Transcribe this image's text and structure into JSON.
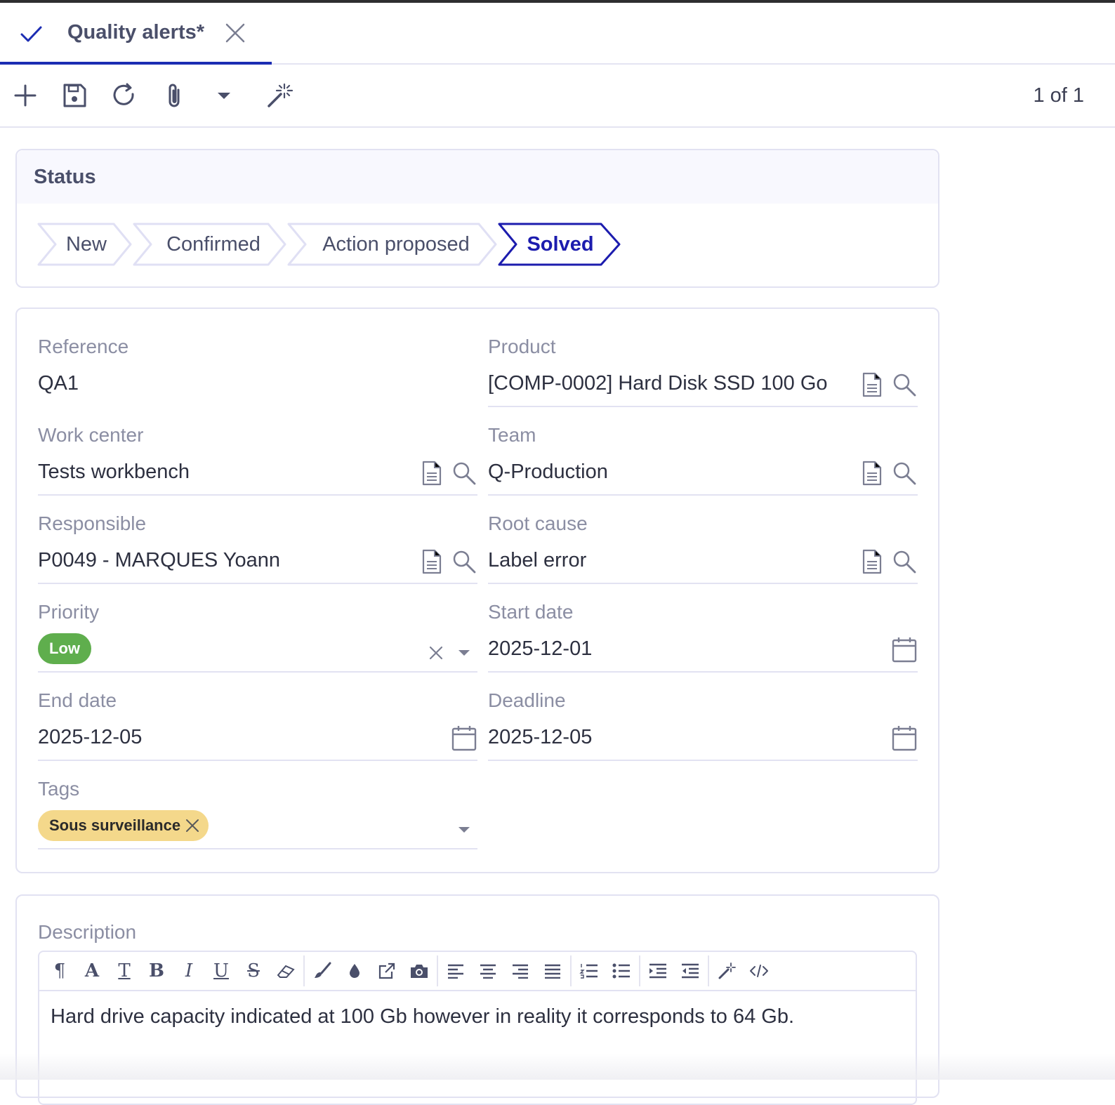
{
  "tab": {
    "title": "Quality alerts*",
    "check_icon": "check-icon",
    "close_icon": "close-icon"
  },
  "toolbar": {
    "icons": [
      "plus-icon",
      "save-icon",
      "refresh-icon",
      "paperclip-icon",
      "caret-down-icon",
      "magic-wand-icon"
    ],
    "pager": "1 of 1"
  },
  "status": {
    "title": "Status",
    "steps": [
      {
        "label": "New",
        "active": false
      },
      {
        "label": "Confirmed",
        "active": false
      },
      {
        "label": "Action proposed",
        "active": false
      },
      {
        "label": "Solved",
        "active": true
      }
    ],
    "active_color": "#1c1cae"
  },
  "fields": {
    "reference": {
      "label": "Reference",
      "value": "QA1"
    },
    "product": {
      "label": "Product",
      "value": "[COMP-0002] Hard Disk SSD 100 Go"
    },
    "work_center": {
      "label": "Work center",
      "value": "Tests workbench"
    },
    "team": {
      "label": "Team",
      "value": "Q-Production"
    },
    "responsible": {
      "label": "Responsible",
      "value": "P0049 - MARQUES Yoann"
    },
    "root_cause": {
      "label": "Root cause",
      "value": "Label error"
    },
    "priority": {
      "label": "Priority",
      "value": "Low",
      "color": "#5fae4d"
    },
    "start_date": {
      "label": "Start date",
      "value": "2025-12-01"
    },
    "end_date": {
      "label": "End date",
      "value": "2025-12-05"
    },
    "deadline": {
      "label": "Deadline",
      "value": "2025-12-05"
    },
    "tags": {
      "label": "Tags",
      "values": [
        "Sous surveillance"
      ],
      "color": "#f4d88b"
    }
  },
  "description": {
    "label": "Description",
    "content": "Hard drive capacity indicated at 100 Gb however in reality it corresponds to 64 Gb.",
    "toolbar_icons": [
      "paragraph-icon",
      "font-icon",
      "clear-format-icon",
      "bold-icon",
      "italic-icon",
      "underline-icon",
      "strikethrough-icon",
      "eraser-icon",
      "brush-icon",
      "color-drop-icon",
      "link-icon",
      "camera-icon",
      "align-left-icon",
      "align-center-icon",
      "align-right-icon",
      "align-justify-icon",
      "ordered-list-icon",
      "unordered-list-icon",
      "indent-icon",
      "outdent-icon",
      "magic-icon",
      "code-icon"
    ]
  }
}
